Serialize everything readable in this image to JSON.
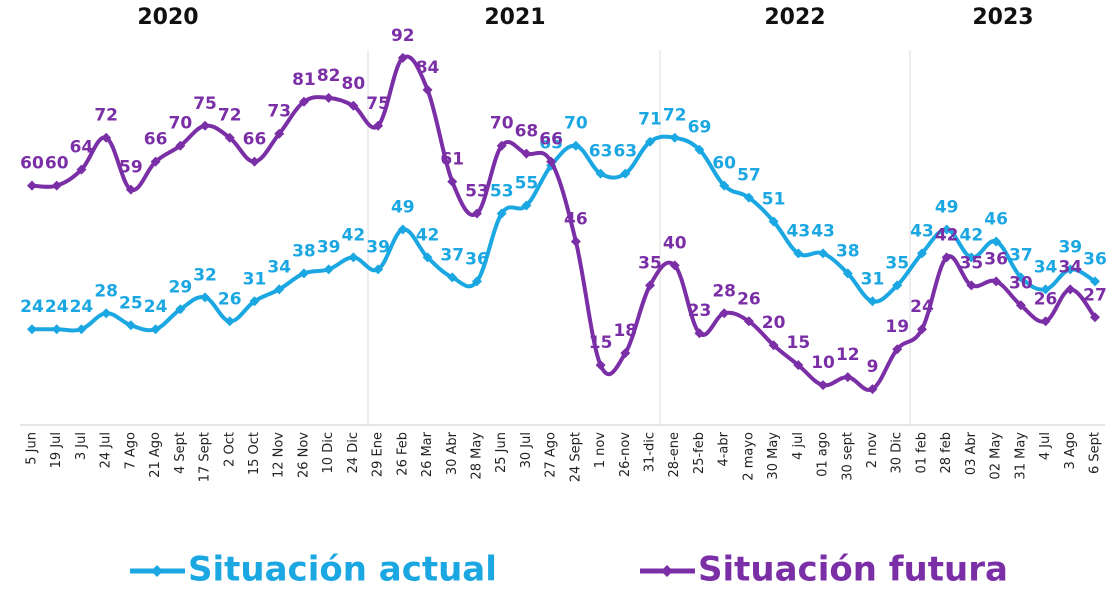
{
  "chart_data": {
    "type": "line",
    "annotations": [
      "2020",
      "2021",
      "2022",
      "2023"
    ],
    "categories": [
      "5 Jun",
      "19 Jul",
      "3 Jul",
      "24 Jul",
      "7 Ago",
      "21 Ago",
      "4 Sept",
      "17 Sept",
      "2 Oct",
      "15 Oct",
      "12 Nov",
      "26 Nov",
      "10 Dic",
      "24 Dic",
      "29 Ene",
      "26 Feb",
      "26 Mar",
      "30 Abr",
      "28 May",
      "25 Jun",
      "30 Jul",
      "27 Ago",
      "24 Sept",
      "1 nov",
      "26-nov",
      "31-dic",
      "28-ene",
      "25-feb",
      "4-abr",
      "2 mayo",
      "30 May",
      "4 jul",
      "01 ago",
      "30 sept",
      "2 nov",
      "30 Dic",
      "01 feb",
      "28 feb",
      "03 Abr",
      "02 May",
      "31 May",
      "4 Jul",
      "3 Ago",
      "6 Sept"
    ],
    "series": [
      {
        "name": "Situación actual",
        "color": "#1ba7e1",
        "values": [
          24,
          24,
          24,
          28,
          25,
          24,
          29,
          32,
          26,
          31,
          34,
          38,
          39,
          42,
          39,
          49,
          42,
          37,
          36,
          53,
          55,
          65,
          70,
          63,
          63,
          71,
          72,
          69,
          60,
          57,
          51,
          43,
          43,
          38,
          31,
          35,
          43,
          49,
          42,
          46,
          37,
          34,
          39,
          36
        ]
      },
      {
        "name": "Situación futura",
        "color": "#7b2fa6",
        "values": [
          60,
          60,
          64,
          72,
          59,
          66,
          70,
          75,
          72,
          66,
          73,
          81,
          82,
          80,
          75,
          92,
          84,
          61,
          53,
          70,
          68,
          66,
          46,
          15,
          18,
          35,
          40,
          23,
          28,
          26,
          20,
          15,
          10,
          12,
          9,
          19,
          24,
          42,
          35,
          36,
          30,
          26,
          34,
          27
        ]
      }
    ],
    "ylim": [
      0,
      100
    ],
    "grid": false,
    "legend": "bottom"
  }
}
